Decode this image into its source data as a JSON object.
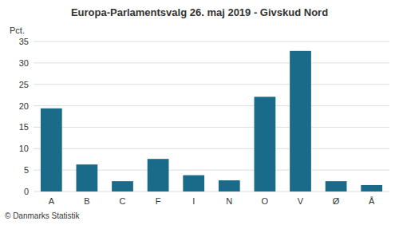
{
  "chart_data": {
    "type": "bar",
    "title": "Europa-Parlamentsvalg 26. maj 2019 - Givskud Nord",
    "categories": [
      "A",
      "B",
      "C",
      "F",
      "I",
      "N",
      "O",
      "V",
      "Ø",
      "Å"
    ],
    "values": [
      19.4,
      6.3,
      2.4,
      7.6,
      3.8,
      2.6,
      22.1,
      32.8,
      2.4,
      1.5
    ],
    "color": "#1a6b8a",
    "ylabel": "Pct.",
    "footer": "© Danmarks Statistik",
    "ylim": [
      0,
      35
    ],
    "yticks": [
      0,
      5,
      10,
      15,
      20,
      25,
      30,
      35
    ],
    "grid": true
  }
}
